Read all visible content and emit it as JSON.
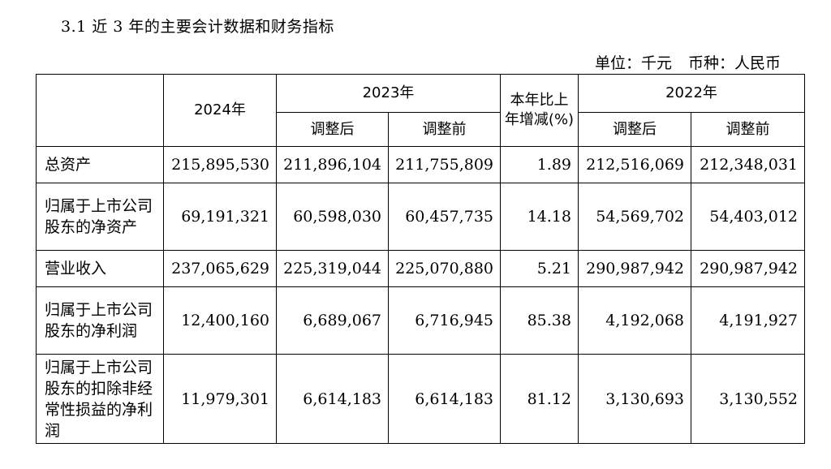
{
  "section_title": "3.1 近 3 年的主要会计数据和财务指标",
  "unit_line": {
    "unit": "单位：千元",
    "currency": "币种：人民币"
  },
  "table": {
    "headers": {
      "year_2024": "2024年",
      "year_2023": "2023年",
      "yoy_change": "本年比上年增减(%)",
      "year_2022": "2022年",
      "adjusted_after_2023": "调整后",
      "adjusted_before_2023": "调整前",
      "adjusted_after_2022": "调整后",
      "adjusted_before_2022": "调整前"
    },
    "rows": [
      {
        "label": "总资产",
        "v2024": "215,895,530",
        "v2023_after": "211,896,104",
        "v2023_before": "211,755,809",
        "change": "1.89",
        "v2022_after": "212,516,069",
        "v2022_before": "212,348,031"
      },
      {
        "label": "归属于上市公司股东的净资产",
        "v2024": "69,191,321",
        "v2023_after": "60,598,030",
        "v2023_before": "60,457,735",
        "change": "14.18",
        "v2022_after": "54,569,702",
        "v2022_before": "54,403,012"
      },
      {
        "label": "营业收入",
        "v2024": "237,065,629",
        "v2023_after": "225,319,044",
        "v2023_before": "225,070,880",
        "change": "5.21",
        "v2022_after": "290,987,942",
        "v2022_before": "290,987,942"
      },
      {
        "label": "归属于上市公司股东的净利润",
        "v2024": "12,400,160",
        "v2023_after": "6,689,067",
        "v2023_before": "6,716,945",
        "change": "85.38",
        "v2022_after": "4,192,068",
        "v2022_before": "4,191,927"
      },
      {
        "label": "归属于上市公司股东的扣除非经常性损益的净利润",
        "v2024": "11,979,301",
        "v2023_after": "6,614,183",
        "v2023_before": "6,614,183",
        "change": "81.12",
        "v2022_after": "3,130,693",
        "v2022_before": "3,130,552"
      }
    ]
  }
}
